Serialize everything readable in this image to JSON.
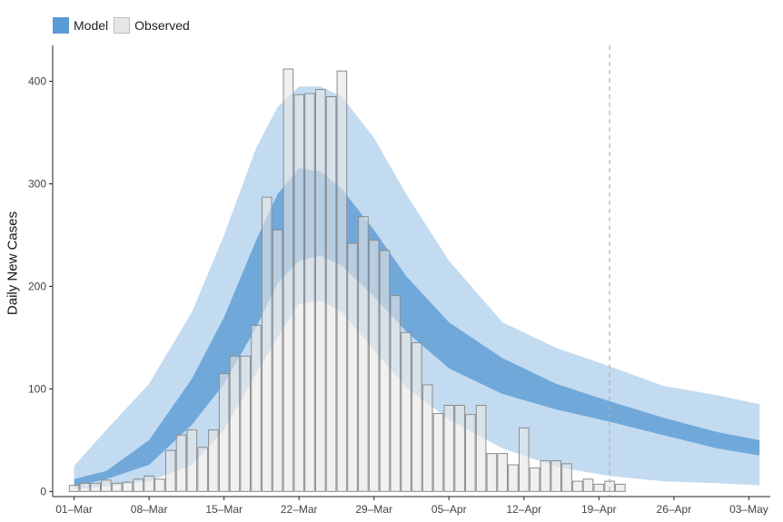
{
  "legend": {
    "items": [
      {
        "label": "Model",
        "color": "#5b9bd5"
      },
      {
        "label": "Observed",
        "color": "#e6e6e6"
      }
    ]
  },
  "chart_data": {
    "type": "bar",
    "title": "",
    "xlabel": "",
    "ylabel": "Daily New Cases",
    "ylim": [
      -5,
      435
    ],
    "yticks": [
      0,
      100,
      200,
      300,
      400
    ],
    "xlim": [
      "2020-02-28",
      "2020-05-05"
    ],
    "xtick_dates": [
      "2020-03-01",
      "2020-03-08",
      "2020-03-15",
      "2020-03-22",
      "2020-03-29",
      "2020-04-05",
      "2020-04-12",
      "2020-04-19",
      "2020-04-26",
      "2020-05-03"
    ],
    "xtick_labels": [
      "01–Mar",
      "08–Mar",
      "15–Mar",
      "22–Mar",
      "29–Mar",
      "05–Apr",
      "12–Apr",
      "19–Apr",
      "26–Apr",
      "03–May"
    ],
    "grid": false,
    "legend_position": "top-left",
    "vline_date": "2020-04-20",
    "colors": {
      "inner_band": "#5b9bd5",
      "outer_band": "#a9cce9",
      "bar_fill": "#e6e6e6",
      "bar_edge": "#8c8c8c",
      "vline": "#b3b3b3"
    },
    "series": [
      {
        "name": "Observed",
        "kind": "bar",
        "dates": [
          "2020-03-01",
          "2020-03-02",
          "2020-03-03",
          "2020-03-04",
          "2020-03-05",
          "2020-03-06",
          "2020-03-07",
          "2020-03-08",
          "2020-03-09",
          "2020-03-10",
          "2020-03-11",
          "2020-03-12",
          "2020-03-13",
          "2020-03-14",
          "2020-03-15",
          "2020-03-16",
          "2020-03-17",
          "2020-03-18",
          "2020-03-19",
          "2020-03-20",
          "2020-03-21",
          "2020-03-22",
          "2020-03-23",
          "2020-03-24",
          "2020-03-25",
          "2020-03-26",
          "2020-03-27",
          "2020-03-28",
          "2020-03-29",
          "2020-03-30",
          "2020-03-31",
          "2020-04-01",
          "2020-04-02",
          "2020-04-03",
          "2020-04-04",
          "2020-04-05",
          "2020-04-06",
          "2020-04-07",
          "2020-04-08",
          "2020-04-09",
          "2020-04-10",
          "2020-04-11",
          "2020-04-12",
          "2020-04-13",
          "2020-04-14",
          "2020-04-15",
          "2020-04-16",
          "2020-04-17",
          "2020-04-18",
          "2020-04-19",
          "2020-04-20",
          "2020-04-21",
          "2020-04-22",
          "2020-04-23"
        ],
        "values": [
          6,
          8,
          8,
          11,
          8,
          9,
          12,
          15,
          12,
          40,
          55,
          60,
          43,
          60,
          115,
          132,
          132,
          162,
          287,
          255,
          412,
          387,
          388,
          392,
          385,
          410,
          242,
          268,
          245,
          235,
          191,
          155,
          145,
          104,
          76,
          84,
          84,
          75,
          84,
          37,
          37,
          26,
          62,
          23,
          30,
          30,
          27,
          10,
          12,
          7,
          10,
          7,
          0,
          0
        ]
      },
      {
        "name": "Model",
        "kind": "band",
        "inner_dates": [
          "2020-03-01",
          "2020-03-04",
          "2020-03-08",
          "2020-03-12",
          "2020-03-15",
          "2020-03-18",
          "2020-03-20",
          "2020-03-22",
          "2020-03-24",
          "2020-03-26",
          "2020-03-29",
          "2020-04-01",
          "2020-04-05",
          "2020-04-10",
          "2020-04-15",
          "2020-04-20",
          "2020-04-25",
          "2020-04-30",
          "2020-05-04"
        ],
        "inner_upper": [
          12,
          20,
          50,
          110,
          170,
          245,
          290,
          315,
          312,
          295,
          255,
          210,
          165,
          130,
          105,
          88,
          72,
          58,
          50
        ],
        "inner_lower": [
          5,
          12,
          26,
          65,
          105,
          160,
          203,
          225,
          230,
          220,
          190,
          156,
          120,
          95,
          80,
          68,
          55,
          42,
          35
        ],
        "outer_dates": [
          "2020-03-01",
          "2020-03-04",
          "2020-03-08",
          "2020-03-12",
          "2020-03-15",
          "2020-03-18",
          "2020-03-20",
          "2020-03-22",
          "2020-03-24",
          "2020-03-26",
          "2020-03-29",
          "2020-04-01",
          "2020-04-05",
          "2020-04-10",
          "2020-04-15",
          "2020-04-20",
          "2020-04-25",
          "2020-04-30",
          "2020-05-04"
        ],
        "outer_upper": [
          25,
          60,
          105,
          175,
          250,
          335,
          375,
          395,
          395,
          385,
          345,
          290,
          225,
          165,
          140,
          122,
          103,
          94,
          85
        ],
        "outer_lower": [
          2,
          5,
          10,
          26,
          60,
          115,
          150,
          183,
          186,
          175,
          138,
          102,
          70,
          42,
          24,
          15,
          10,
          8,
          6
        ]
      }
    ]
  }
}
